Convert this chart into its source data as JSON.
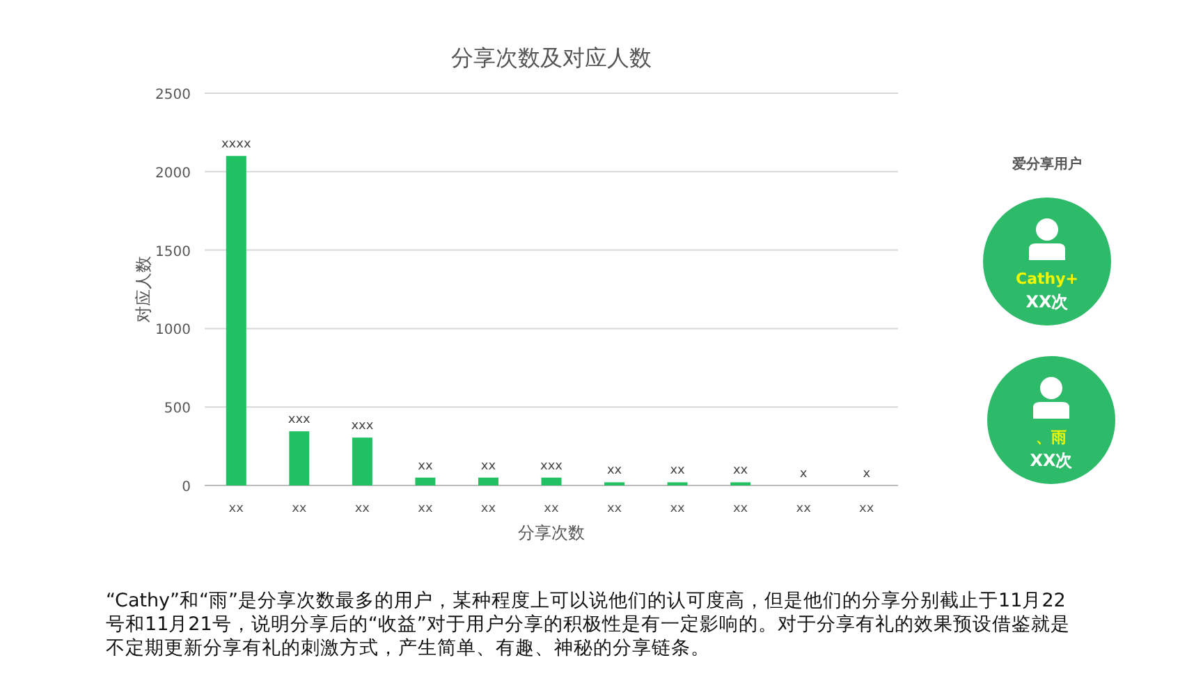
{
  "chart_data": {
    "type": "bar",
    "title": "分享次数及对应人数",
    "xlabel": "分享次数",
    "ylabel": "对应人数",
    "categories": [
      "xx",
      "xx",
      "xx",
      "xx",
      "xx",
      "xx",
      "xx",
      "xx",
      "xx",
      "xx",
      "xx"
    ],
    "values": [
      2100,
      345,
      305,
      50,
      50,
      50,
      20,
      20,
      20,
      0,
      0
    ],
    "value_labels": [
      "xxxx",
      "xxx",
      "xxx",
      "xx",
      "xx",
      "xxx",
      "xx",
      "xx",
      "xx",
      "x",
      "x"
    ],
    "color": "#21c063",
    "ylim": [
      0,
      2500
    ],
    "yticks": [
      0,
      500,
      1000,
      1500,
      2000,
      2500
    ],
    "grid": "y",
    "annotations": [
      "爱分享用户",
      "Cathy+",
      "XX次",
      "、雨",
      "XX次",
      "“Cathy”和“雨”是分享次数最多的用户，某种程度上可以说他们的认可度高，但是他们的分享分别截止于11月22号和11月21号，说明分享后的“收益”对于用户分享的积极性是有一定影响的。对于分享有礼的效果预设借鉴就是不定期更新分享有礼的刺激方式，产生简单、有趣、神秘的分享链条。"
    ]
  }
}
